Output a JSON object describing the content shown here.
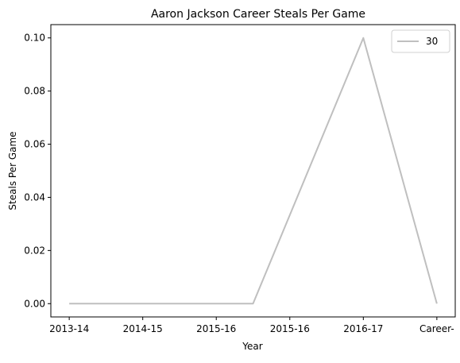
{
  "chart_data": {
    "type": "line",
    "title": "Aaron Jackson  Career Steals Per Game",
    "xlabel": "Year",
    "ylabel": "Steals Per Game",
    "categories": [
      "2013-14",
      "2014-15",
      "2015-16",
      "2015-16",
      "2016-17",
      "Career-"
    ],
    "x": [
      0,
      1.25,
      2.5,
      3.75,
      5.0,
      6.25
    ],
    "x_ticks_at": [
      0,
      1,
      2,
      3,
      4,
      5
    ],
    "series": [
      {
        "name": "30",
        "color": "#bfbfbf",
        "x": [
          0,
          1,
          2,
          2.5,
          4.0,
          5.0
        ],
        "values": [
          0.0,
          0.0,
          0.0,
          0.0,
          0.1,
          0.0
        ]
      }
    ],
    "ylim": [
      -0.005,
      0.105
    ],
    "xlim": [
      -0.25,
      5.25
    ],
    "yticks": [
      0.0,
      0.02,
      0.04,
      0.06,
      0.08,
      0.1
    ],
    "ytick_labels": [
      "0.00",
      "0.02",
      "0.04",
      "0.06",
      "0.08",
      "0.10"
    ],
    "grid": false,
    "legend_position": "top-right"
  }
}
